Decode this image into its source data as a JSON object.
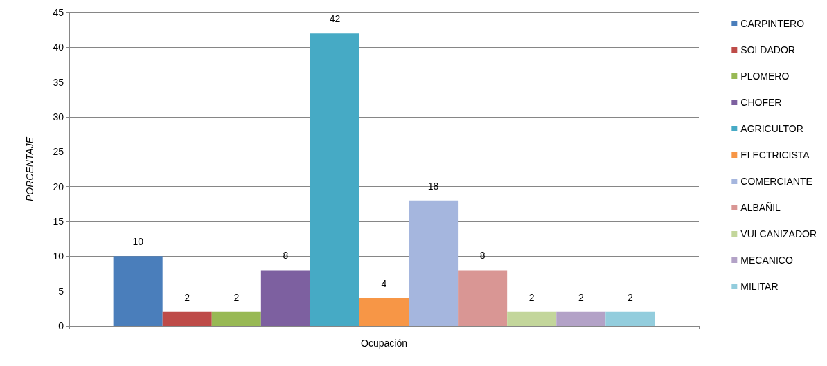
{
  "chart_data": {
    "type": "bar",
    "xlabel": "Ocupación",
    "ylabel": "PORCENTAJE",
    "categories": [
      null
    ],
    "series": [
      {
        "name": "CARPINTERO",
        "color": "#4a7ebb",
        "values": [
          10
        ]
      },
      {
        "name": "SOLDADOR",
        "color": "#be4b48",
        "values": [
          2
        ]
      },
      {
        "name": "PLOMERO",
        "color": "#98b954",
        "values": [
          2
        ]
      },
      {
        "name": "CHOFER",
        "color": "#7d60a0",
        "values": [
          8
        ]
      },
      {
        "name": "AGRICULTOR",
        "color": "#46aac5",
        "values": [
          42
        ]
      },
      {
        "name": "ELECTRICISTA",
        "color": "#f79646",
        "values": [
          4
        ]
      },
      {
        "name": "COMERCIANTE",
        "color": "#a5b6de",
        "values": [
          18
        ]
      },
      {
        "name": "ALBAÑIL",
        "color": "#d99694",
        "values": [
          8
        ]
      },
      {
        "name": "VULCANIZADOR",
        "color": "#c3d69b",
        "values": [
          2
        ]
      },
      {
        "name": "MECANICO",
        "color": "#b3a2c7",
        "values": [
          2
        ]
      },
      {
        "name": "MILITAR",
        "color": "#93cddd",
        "values": [
          2
        ]
      }
    ],
    "ylim": [
      0,
      45
    ],
    "yticks": [
      0,
      5,
      10,
      15,
      20,
      25,
      30,
      35,
      40,
      45
    ],
    "grid": "y",
    "legend": "right",
    "data_labels": true
  }
}
